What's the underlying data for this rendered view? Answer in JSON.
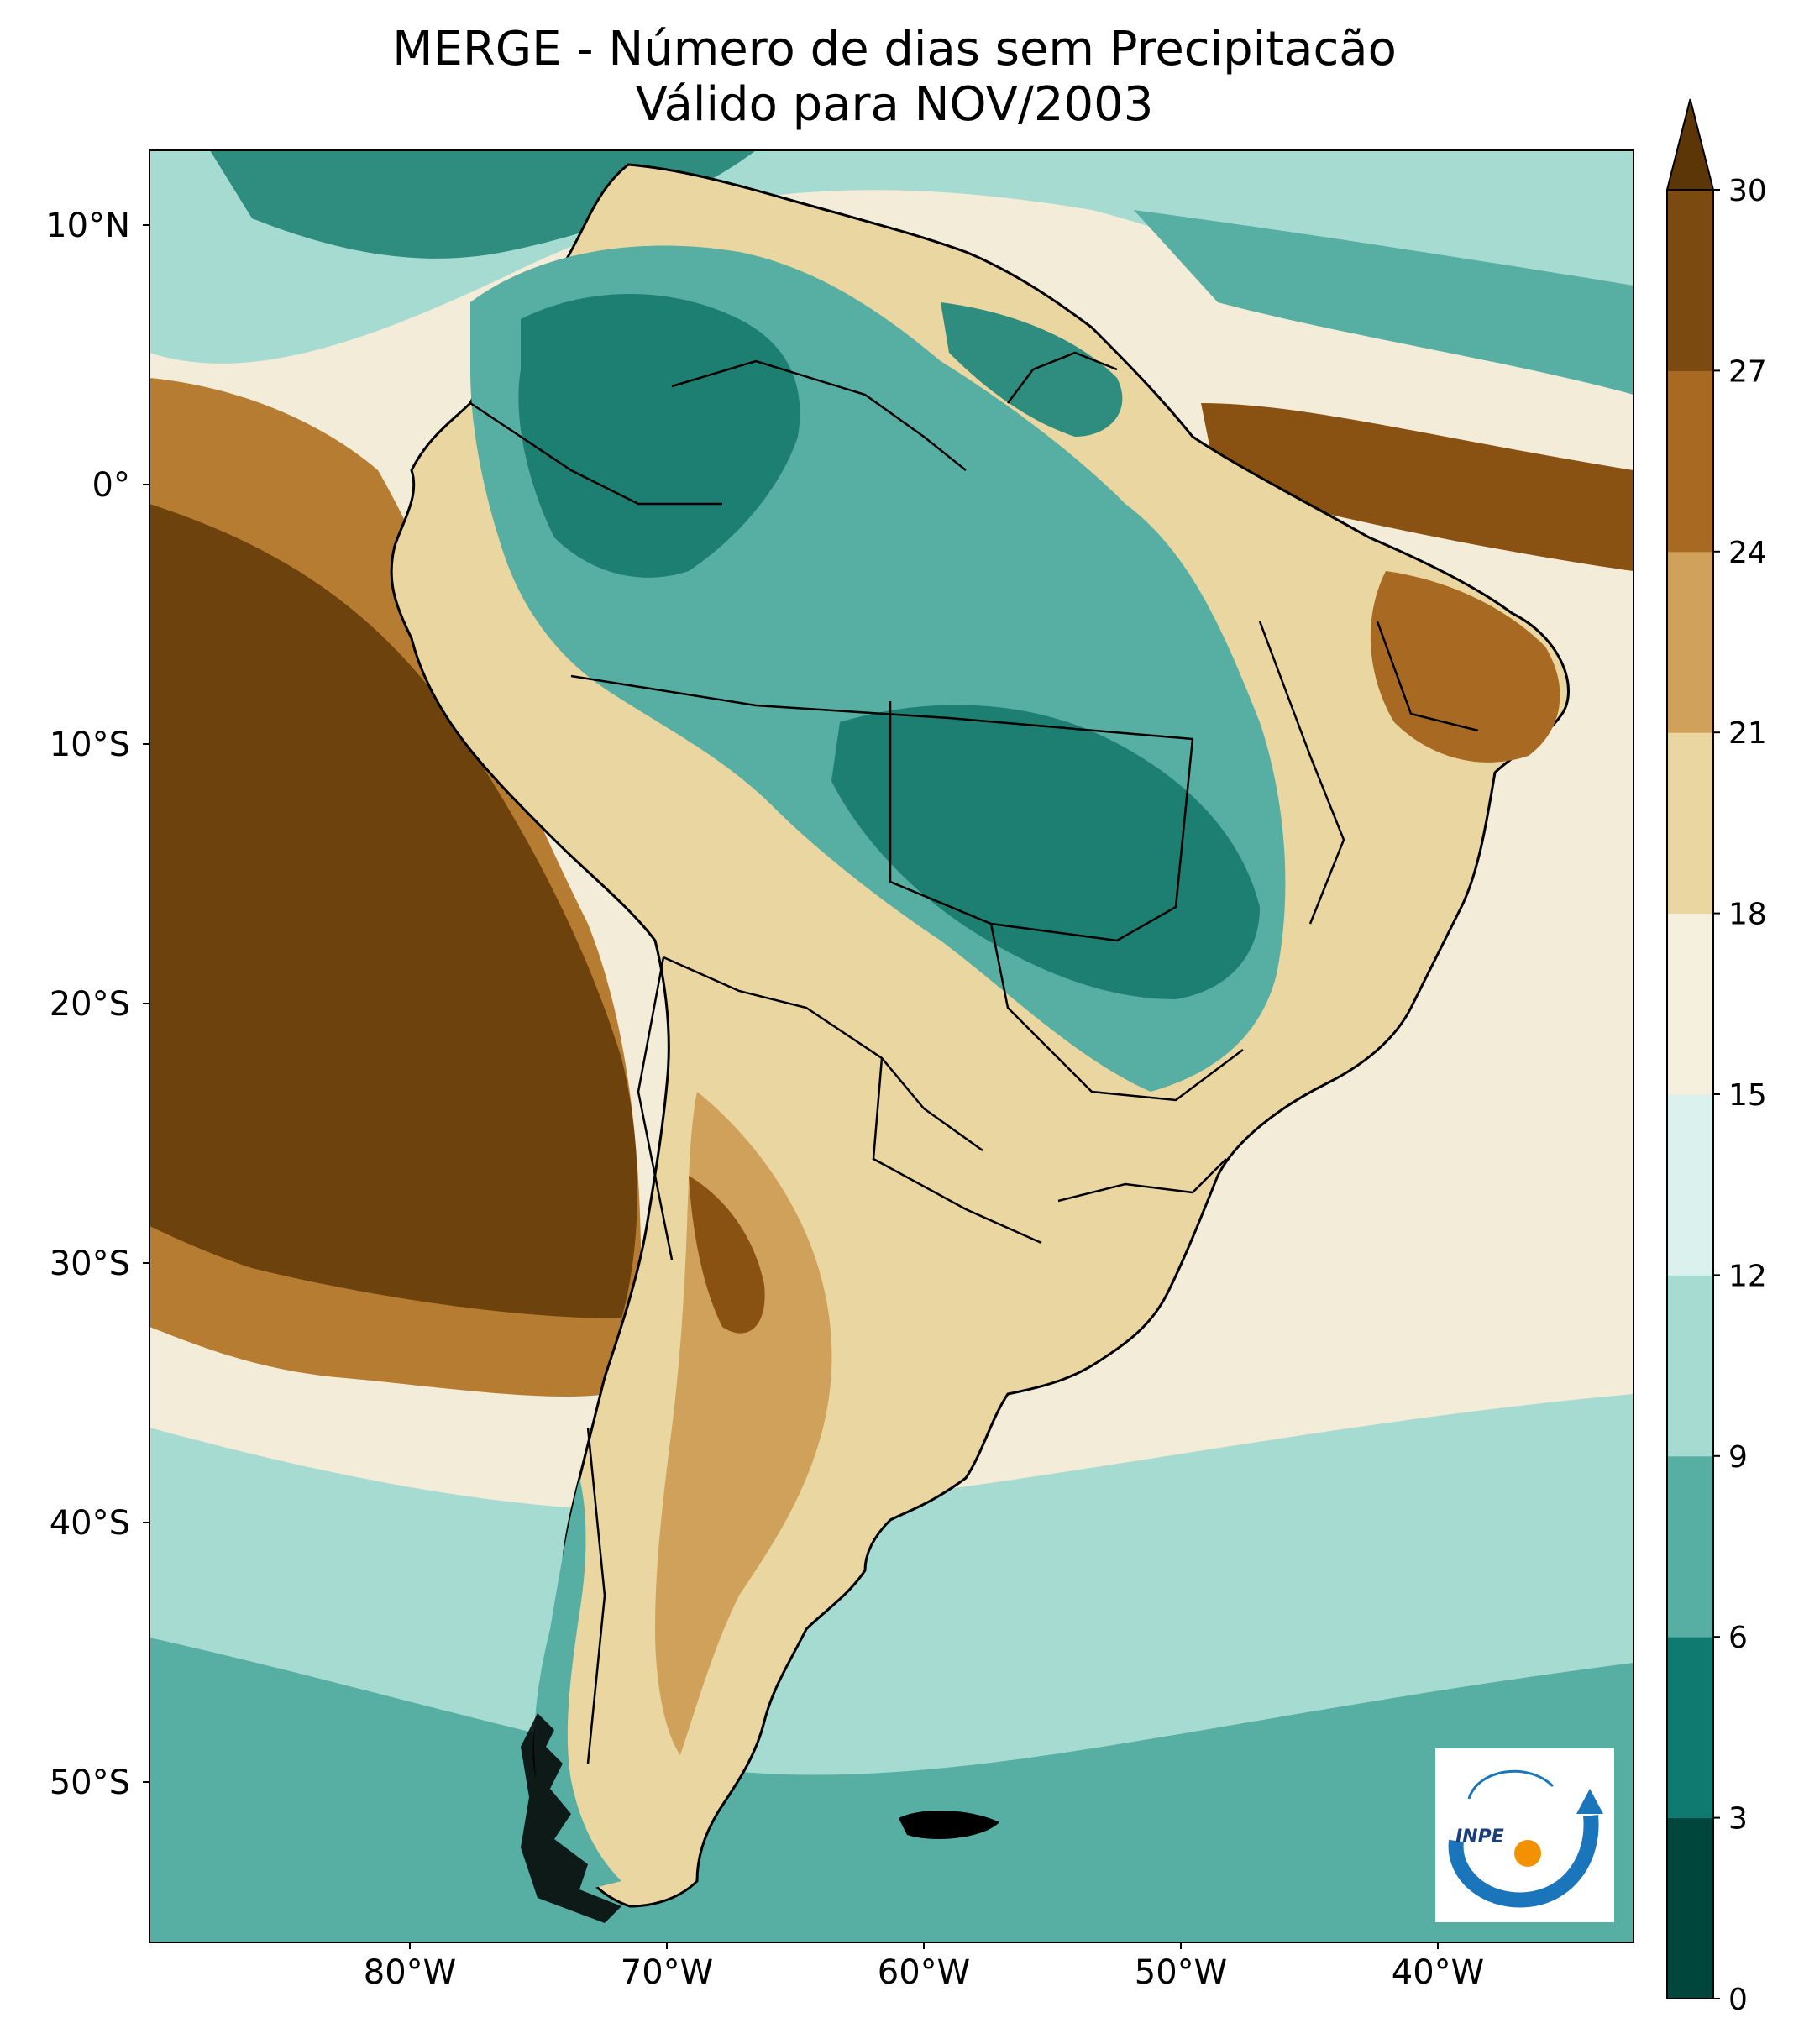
{
  "title": {
    "line1": "MERGE - Número de dias sem Precipitacão",
    "line2": "Válido para NOV/2003"
  },
  "axes": {
    "lat_ticks": [
      "10°N",
      "0°",
      "10°S",
      "20°S",
      "30°S",
      "40°S",
      "50°S"
    ],
    "lon_ticks": [
      "80°W",
      "70°W",
      "60°W",
      "50°W",
      "40°W"
    ]
  },
  "colorbar": {
    "ticks": [
      "0",
      "3",
      "6",
      "9",
      "12",
      "15",
      "18",
      "21",
      "24",
      "27",
      "30"
    ],
    "colors": [
      "#01463c",
      "#0f7a6f",
      "#57aea2",
      "#a6dbd2",
      "#dbf1ee",
      "#f5efdd",
      "#ead6a0",
      "#cfa15a",
      "#a86a22",
      "#7a4a10",
      "#5d3608"
    ],
    "extend": "max"
  },
  "logo": {
    "text": "INPE",
    "arc_color": "#1b75bb",
    "dot_color": "#f39200"
  },
  "colors": {
    "ocean_dry": "#6e420d",
    "land_wet": "#1c7f72",
    "border": "#000000"
  }
}
